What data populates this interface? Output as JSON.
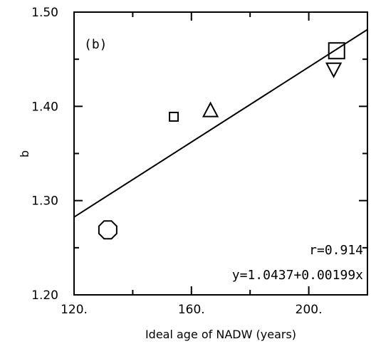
{
  "chart_data": {
    "type": "scatter",
    "panel_label": "(b)",
    "xlabel": "Ideal age of NADW (years)",
    "ylabel": "b",
    "xlim": [
      120,
      220
    ],
    "ylim": [
      1.2,
      1.5
    ],
    "x_major_ticks": [
      120,
      160,
      200
    ],
    "x_tick_labels": [
      "120.",
      "160.",
      "200."
    ],
    "x_minor_ticks": [
      140,
      180,
      220
    ],
    "y_major_ticks": [
      1.2,
      1.3,
      1.4,
      1.5
    ],
    "y_tick_labels": [
      "1.20",
      "1.30",
      "1.40",
      "1.50"
    ],
    "y_minor_ticks": [
      1.25,
      1.35,
      1.45
    ],
    "points": [
      {
        "x": 131.5,
        "y": 1.269,
        "marker": "octagon"
      },
      {
        "x": 154.0,
        "y": 1.389,
        "marker": "square-small"
      },
      {
        "x": 166.5,
        "y": 1.396,
        "marker": "triangle-up"
      },
      {
        "x": 208.5,
        "y": 1.439,
        "marker": "triangle-down"
      },
      {
        "x": 209.5,
        "y": 1.459,
        "marker": "square-large"
      }
    ],
    "fit": {
      "intercept": 1.0437,
      "slope": 0.00199,
      "r": 0.914
    },
    "annotations": {
      "r_text": "r=0.914",
      "eq_text": "y=1.0437+0.00199x"
    }
  }
}
